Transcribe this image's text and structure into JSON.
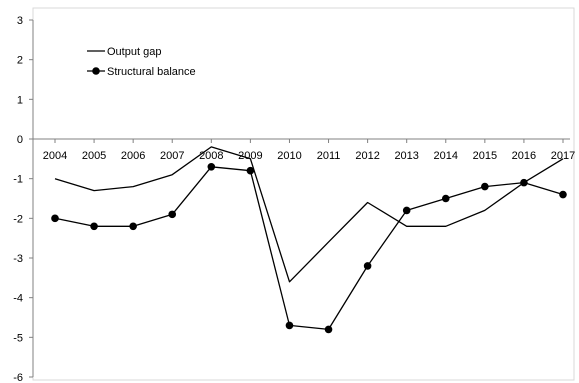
{
  "chart_data": {
    "type": "line",
    "title": "",
    "xlabel": "",
    "ylabel": "",
    "categories": [
      "2004",
      "2005",
      "2006",
      "2007",
      "2008",
      "2009",
      "2010",
      "2011",
      "2012",
      "2013",
      "2014",
      "2015",
      "2016",
      "2017"
    ],
    "ylim": [
      -6,
      3
    ],
    "yticks": [
      3,
      2,
      1,
      0,
      -1,
      -2,
      -3,
      -4,
      -5,
      -6
    ],
    "grid": false,
    "legend_position": "top-left",
    "series": [
      {
        "name": "Output gap",
        "marker": "none",
        "color": "#000000",
        "values": [
          -1.0,
          -1.3,
          -1.2,
          -0.9,
          -0.2,
          -0.5,
          -3.6,
          -2.6,
          -1.6,
          -2.2,
          -2.2,
          -1.8,
          -1.1,
          -0.5
        ]
      },
      {
        "name": "Structural balance",
        "marker": "circle",
        "color": "#000000",
        "values": [
          -2.0,
          -2.2,
          -2.2,
          -1.9,
          -0.7,
          -0.8,
          -4.7,
          -4.8,
          -3.2,
          -1.8,
          -1.5,
          -1.2,
          -1.1,
          -1.4
        ]
      }
    ]
  }
}
